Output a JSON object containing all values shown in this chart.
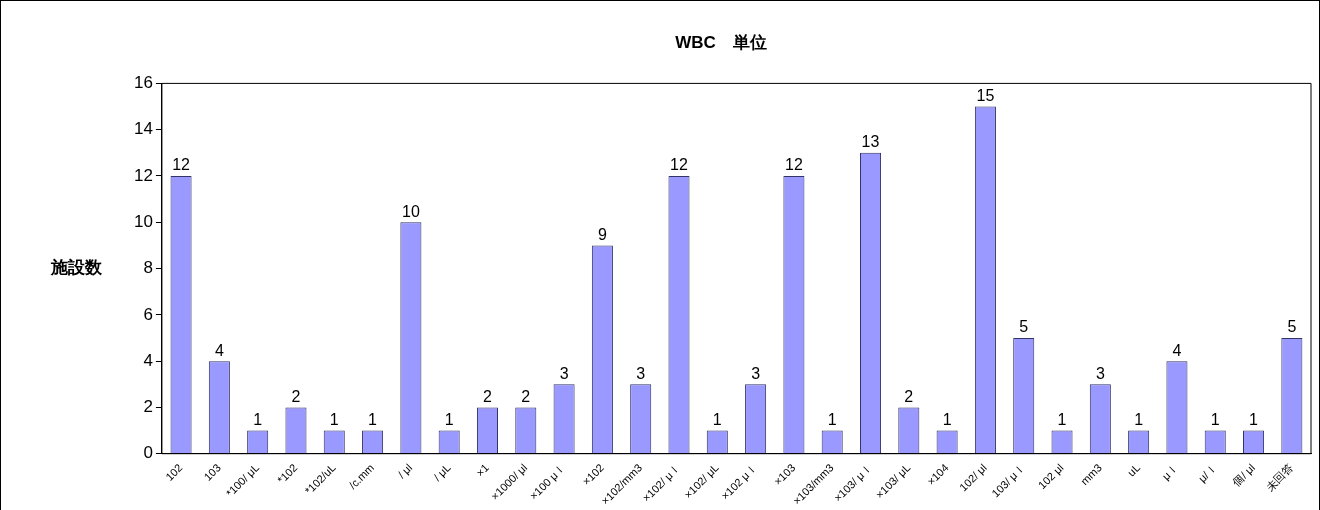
{
  "chart_data": {
    "type": "bar",
    "title": "WBC　単位",
    "ylabel": "施設数",
    "categories": [
      "102",
      "103",
      "*100/ μL",
      "*102",
      "*102/uL",
      "/c.mm",
      "/ μl",
      "/ μL",
      "×1",
      "×1000/ μl",
      "×100 μｌ",
      "×102",
      "×102/mm3",
      "×102/ μｌ",
      "×102/ μL",
      "×102 μｌ",
      "×103",
      "×103/mm3",
      "×103/ μｌ",
      "×103/ μL",
      "×104",
      "102/ μl",
      "103/ μｌ",
      "102 μl",
      "mm3",
      "uL",
      "μｌ",
      "μ/ｌ",
      "個/ μl",
      "未回答"
    ],
    "values": [
      12,
      4,
      1,
      2,
      1,
      1,
      10,
      1,
      2,
      2,
      3,
      9,
      3,
      12,
      1,
      3,
      12,
      1,
      13,
      2,
      1,
      15,
      5,
      1,
      3,
      1,
      4,
      1,
      1,
      5
    ],
    "color": "#9999ff",
    "ylim": [
      0,
      16
    ],
    "yticks": [
      0,
      2,
      4,
      6,
      8,
      10,
      12,
      14,
      16
    ],
    "grid": false,
    "legend": false,
    "data_labels": true
  }
}
